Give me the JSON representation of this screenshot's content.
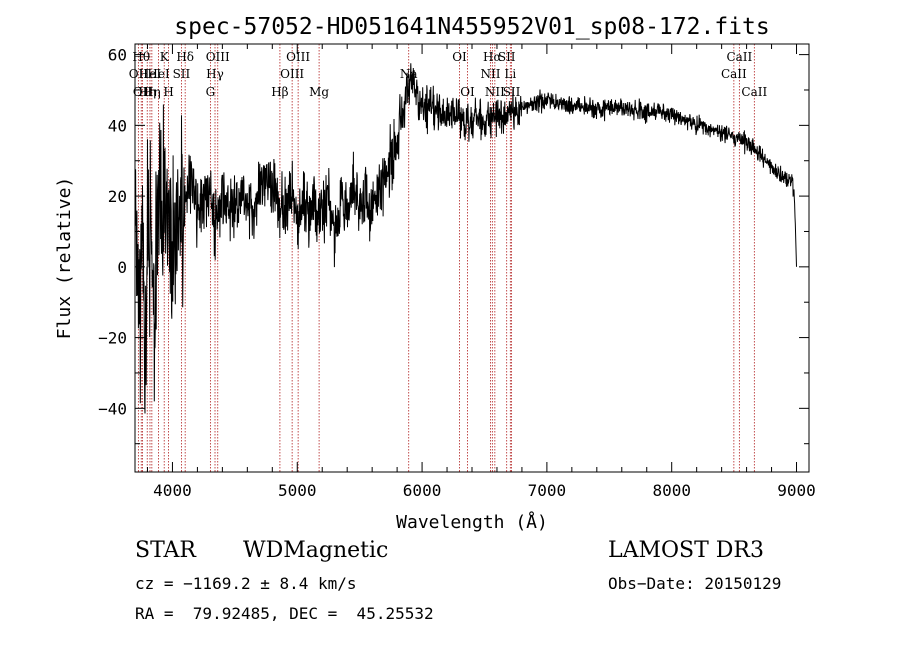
{
  "chart_data": {
    "type": "line",
    "title": "spec-57052-HD051641N455952V01_sp08-172.fits",
    "xlabel": "Wavelength (Å)",
    "ylabel": "Flux (relative)",
    "xlim": [
      3700,
      9100
    ],
    "ylim": [
      -58,
      63
    ],
    "x_ticks": [
      4000,
      5000,
      6000,
      7000,
      8000,
      9000
    ],
    "y_ticks": [
      -40,
      -20,
      0,
      20,
      40,
      60
    ],
    "x_tick_labels": [
      "4000",
      "5000",
      "6000",
      "7000",
      "8000",
      "9000"
    ],
    "y_tick_labels": [
      "−40",
      "−20",
      "0",
      "20",
      "40",
      "60"
    ],
    "grid": false,
    "series": [
      {
        "x": [
          3700,
          3720,
          3740,
          3760,
          3780,
          3800,
          3820,
          3840,
          3860,
          3880,
          3900,
          3920,
          3940,
          3960,
          3980,
          4000,
          4050,
          4100,
          4150,
          4200,
          4250,
          4300,
          4350,
          4400,
          4450,
          4500,
          4550,
          4600,
          4650,
          4700,
          4750,
          4800,
          4850,
          4900,
          4950,
          5000,
          5050,
          5100,
          5150,
          5200,
          5250,
          5300,
          5350,
          5400,
          5450,
          5500,
          5550,
          5600,
          5650,
          5700,
          5750,
          5780,
          5800,
          5830,
          5860,
          5880,
          5900,
          5930,
          5960,
          6000,
          6050,
          6100,
          6150,
          6200,
          6250,
          6300,
          6350,
          6400,
          6450,
          6500,
          6550,
          6600,
          6650,
          6700,
          6800,
          6900,
          7000,
          7100,
          7200,
          7300,
          7400,
          7500,
          7600,
          7700,
          7800,
          7900,
          8000,
          8100,
          8200,
          8300,
          8400,
          8500,
          8550,
          8600,
          8650,
          8700,
          8750,
          8800,
          8850,
          8900,
          8950,
          8980,
          9000
        ],
        "y": [
          10,
          5,
          -20,
          15,
          -30,
          5,
          20,
          0,
          -15,
          10,
          25,
          5,
          30,
          15,
          20,
          10,
          15,
          20,
          25,
          15,
          20,
          18,
          12,
          22,
          16,
          20,
          18,
          22,
          15,
          20,
          25,
          22,
          18,
          15,
          22,
          12,
          20,
          15,
          18,
          16,
          20,
          10,
          18,
          15,
          22,
          18,
          20,
          16,
          22,
          25,
          30,
          33,
          36,
          42,
          46,
          52,
          50,
          54,
          48,
          46,
          44,
          45,
          43,
          42,
          44,
          42,
          40,
          41,
          42,
          40,
          41,
          43,
          42,
          44,
          45,
          46,
          47,
          46,
          46,
          45,
          45,
          45,
          45,
          44,
          44,
          44,
          43,
          41,
          40,
          39,
          38,
          37,
          36,
          35,
          34,
          32,
          30,
          28,
          26,
          25,
          24,
          22,
          0
        ]
      }
    ],
    "lines": [
      {
        "x": 3727,
        "label": "OII",
        "row": 2
      },
      {
        "x": 3750,
        "label": "Hθ",
        "row": 1
      },
      {
        "x": 3760,
        "label": "OII",
        "row": 3
      },
      {
        "x": 3798,
        "label": "Hη",
        "row": 3
      },
      {
        "x": 3820,
        "label": "HeI",
        "row": 2
      },
      {
        "x": 3835,
        "label": "Hη",
        "row": 3
      },
      {
        "x": 3889,
        "label": "HeI",
        "row": 2
      },
      {
        "x": 3934,
        "label": "K",
        "row": 1
      },
      {
        "x": 3969,
        "label": "H",
        "row": 3
      },
      {
        "x": 4072,
        "label": "SII",
        "row": 2
      },
      {
        "x": 4102,
        "label": "Hδ",
        "row": 1
      },
      {
        "x": 4304,
        "label": "G",
        "row": 3
      },
      {
        "x": 4341,
        "label": "Hγ",
        "row": 2
      },
      {
        "x": 4363,
        "label": "OIII",
        "row": 1
      },
      {
        "x": 4861,
        "label": "Hβ",
        "row": 3
      },
      {
        "x": 4959,
        "label": "OIII",
        "row": 2
      },
      {
        "x": 5007,
        "label": "OIII",
        "row": 1
      },
      {
        "x": 5175,
        "label": "Mg",
        "row": 3
      },
      {
        "x": 5893,
        "label": "Na",
        "row": 2
      },
      {
        "x": 6300,
        "label": "OI",
        "row": 1
      },
      {
        "x": 6364,
        "label": "OI",
        "row": 3
      },
      {
        "x": 6548,
        "label": "NII",
        "row": 2
      },
      {
        "x": 6563,
        "label": "Hα",
        "row": 1
      },
      {
        "x": 6583,
        "label": "NII",
        "row": 3
      },
      {
        "x": 6678,
        "label": "SII",
        "row": 1
      },
      {
        "x": 6707,
        "label": "Li",
        "row": 2
      },
      {
        "x": 6717,
        "label": "SII",
        "row": 3
      },
      {
        "x": 8498,
        "label": "CaII",
        "row": 2
      },
      {
        "x": 8542,
        "label": "CaII",
        "row": 1
      },
      {
        "x": 8662,
        "label": "CaII",
        "row": 3
      }
    ]
  },
  "info": {
    "object_class": "STAR",
    "subclass": "WDMagnetic",
    "survey": "LAMOST DR3",
    "cz": "cz = −1169.2 ± 8.4 km/s",
    "obs_date": "Obs−Date: 20150129",
    "radec": "RA =  79.92485, DEC =  45.25532"
  },
  "colors": {
    "spectrum": "#000000",
    "line_marker": "#b22222"
  }
}
